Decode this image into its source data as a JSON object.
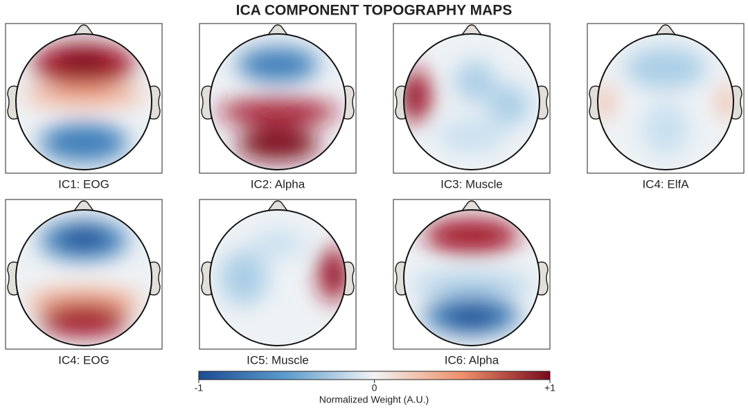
{
  "title": "ICA COMPONENT TOPOGRAPHY MAPS",
  "components": [
    {
      "label": "IC1: EOG"
    },
    {
      "label": "IC2: Alpha"
    },
    {
      "label": "IC3: Muscle"
    },
    {
      "label": "IC4: ElfA"
    },
    {
      "label": "IC4: EOG"
    },
    {
      "label": "IC5: Muscle"
    },
    {
      "label": "IC6: Alpha"
    }
  ],
  "colorbar": {
    "label": "Normalized Weight (A.U.)",
    "lim": [
      -1,
      1
    ],
    "ticks": [
      -1,
      0,
      {
        "value": 1,
        "label": "+1"
      }
    ]
  }
}
